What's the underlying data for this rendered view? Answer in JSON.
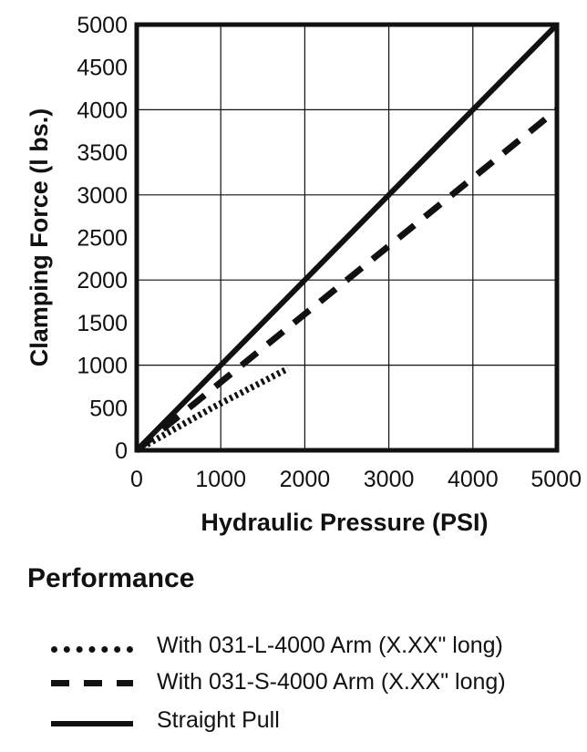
{
  "chart_data": {
    "type": "line",
    "title": "",
    "xlabel": "Hydraulic Pressure  (PSI)",
    "ylabel": "Clamping Force (l bs.)",
    "xlim": [
      0,
      5000
    ],
    "ylim": [
      0,
      5000
    ],
    "x_ticks": [
      "0",
      "1000",
      "2000",
      "3000",
      "4000",
      "5000"
    ],
    "y_ticks": [
      "0",
      "500",
      "1000",
      "1500",
      "2000",
      "2500",
      "3000",
      "3500",
      "4000",
      "4500",
      "5000"
    ],
    "grid": true,
    "series": [
      {
        "name": "With 031-L-4000 Arm (X.XX\" long)",
        "style": "dotted",
        "color": "#111111",
        "points": [
          [
            0,
            0
          ],
          [
            900,
            500
          ],
          [
            1800,
            960
          ]
        ]
      },
      {
        "name": "With 031-S-4000 Arm (X.XX\" long)",
        "style": "dashed",
        "color": "#111111",
        "points": [
          [
            0,
            0
          ],
          [
            5000,
            4000
          ]
        ]
      },
      {
        "name": "Straight Pull",
        "style": "solid",
        "color": "#111111",
        "points": [
          [
            0,
            0
          ],
          [
            5000,
            5000
          ]
        ]
      }
    ]
  },
  "section_title": "Performance"
}
